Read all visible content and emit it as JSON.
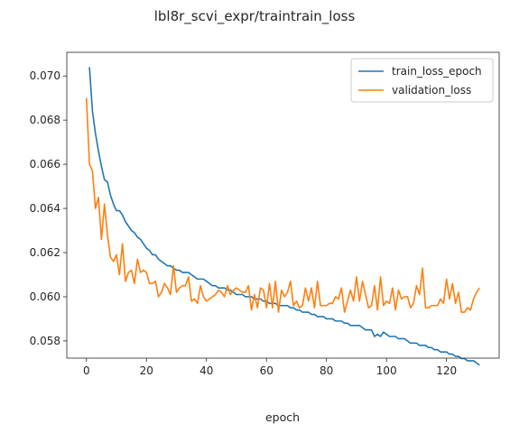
{
  "chart_data": {
    "type": "line",
    "title": "lbl8r_scvi_expr/traintrain_loss",
    "xlabel": "epoch",
    "ylabel": "",
    "xlim": [
      -6.55,
      137.55
    ],
    "ylim": [
      0.05722,
      0.07107
    ],
    "xticks": [
      0,
      20,
      40,
      60,
      80,
      100,
      120
    ],
    "yticks": [
      0.058,
      0.06,
      0.062,
      0.064,
      0.066,
      0.068,
      0.07
    ],
    "ytick_labels": [
      "0.058",
      "0.060",
      "0.062",
      "0.064",
      "0.066",
      "0.068",
      "0.070"
    ],
    "grid": false,
    "legend": "top-right",
    "series": [
      {
        "name": "train_loss_epoch",
        "color": "#1f77b4",
        "x": [
          1,
          2,
          3,
          4,
          5,
          6,
          7,
          8,
          9,
          10,
          11,
          12,
          13,
          14,
          15,
          16,
          17,
          18,
          19,
          20,
          21,
          22,
          23,
          24,
          25,
          26,
          27,
          28,
          29,
          30,
          31,
          32,
          33,
          34,
          35,
          36,
          37,
          38,
          39,
          40,
          41,
          42,
          43,
          44,
          45,
          46,
          47,
          48,
          49,
          50,
          51,
          52,
          53,
          54,
          55,
          56,
          57,
          58,
          59,
          60,
          61,
          62,
          63,
          64,
          65,
          66,
          67,
          68,
          69,
          70,
          71,
          72,
          73,
          74,
          75,
          76,
          77,
          78,
          79,
          80,
          81,
          82,
          83,
          84,
          85,
          86,
          87,
          88,
          89,
          90,
          91,
          92,
          93,
          94,
          95,
          96,
          97,
          98,
          99,
          100,
          101,
          102,
          103,
          104,
          105,
          106,
          107,
          108,
          109,
          110,
          111,
          112,
          113,
          114,
          115,
          116,
          117,
          118,
          119,
          120,
          121,
          122,
          123,
          124,
          125,
          126,
          127,
          128,
          129,
          130,
          131
        ],
        "values": [
          0.0704,
          0.0684,
          0.0674,
          0.0666,
          0.0659,
          0.0653,
          0.0652,
          0.0646,
          0.0642,
          0.0639,
          0.0639,
          0.0637,
          0.0634,
          0.0632,
          0.063,
          0.0629,
          0.0627,
          0.0626,
          0.0624,
          0.0622,
          0.0621,
          0.0619,
          0.0619,
          0.0617,
          0.0616,
          0.0615,
          0.0614,
          0.0614,
          0.0613,
          0.0612,
          0.0612,
          0.0611,
          0.0611,
          0.0611,
          0.061,
          0.0609,
          0.0608,
          0.0608,
          0.0608,
          0.0607,
          0.0606,
          0.0605,
          0.0605,
          0.0604,
          0.0604,
          0.0604,
          0.0603,
          0.0603,
          0.0602,
          0.0601,
          0.0601,
          0.0601,
          0.06,
          0.06,
          0.06,
          0.0599,
          0.0599,
          0.0599,
          0.0598,
          0.0598,
          0.0597,
          0.0597,
          0.0597,
          0.0596,
          0.0596,
          0.0596,
          0.0596,
          0.0595,
          0.0595,
          0.0594,
          0.0594,
          0.0593,
          0.0593,
          0.0593,
          0.0592,
          0.0592,
          0.0591,
          0.0591,
          0.0591,
          0.059,
          0.059,
          0.059,
          0.0589,
          0.0589,
          0.0589,
          0.0588,
          0.0588,
          0.0587,
          0.0587,
          0.0587,
          0.0587,
          0.0586,
          0.0585,
          0.0585,
          0.0585,
          0.0582,
          0.0583,
          0.0582,
          0.0584,
          0.0583,
          0.0582,
          0.0582,
          0.0582,
          0.0581,
          0.0581,
          0.0581,
          0.058,
          0.0579,
          0.0579,
          0.0579,
          0.0578,
          0.0578,
          0.0578,
          0.0577,
          0.0577,
          0.0576,
          0.0576,
          0.0575,
          0.0575,
          0.0575,
          0.0574,
          0.0574,
          0.0573,
          0.0573,
          0.0572,
          0.0572,
          0.0571,
          0.0571,
          0.0571,
          0.057,
          0.0569
        ]
      },
      {
        "name": "validation_loss",
        "color": "#ff7f0e",
        "x": [
          0,
          1,
          2,
          3,
          4,
          5,
          6,
          7,
          8,
          9,
          10,
          11,
          12,
          13,
          14,
          15,
          16,
          17,
          18,
          19,
          20,
          21,
          22,
          23,
          24,
          25,
          26,
          27,
          28,
          29,
          30,
          31,
          32,
          33,
          34,
          35,
          36,
          37,
          38,
          39,
          40,
          41,
          42,
          43,
          44,
          45,
          46,
          47,
          48,
          49,
          50,
          51,
          52,
          53,
          54,
          55,
          56,
          57,
          58,
          59,
          60,
          61,
          62,
          63,
          64,
          65,
          66,
          67,
          68,
          69,
          70,
          71,
          72,
          73,
          74,
          75,
          76,
          77,
          78,
          79,
          80,
          81,
          82,
          83,
          84,
          85,
          86,
          87,
          88,
          89,
          90,
          91,
          92,
          93,
          94,
          95,
          96,
          97,
          98,
          99,
          100,
          101,
          102,
          103,
          104,
          105,
          106,
          107,
          108,
          109,
          110,
          111,
          112,
          113,
          114,
          115,
          116,
          117,
          118,
          119,
          120,
          121,
          122,
          123,
          124,
          125,
          126,
          127,
          128,
          129,
          130,
          131
        ],
        "values": [
          0.069,
          0.066,
          0.0657,
          0.064,
          0.0645,
          0.0626,
          0.0642,
          0.0628,
          0.0618,
          0.0616,
          0.0619,
          0.061,
          0.0624,
          0.0607,
          0.0611,
          0.0612,
          0.0606,
          0.0617,
          0.0611,
          0.0612,
          0.0611,
          0.0606,
          0.0606,
          0.0607,
          0.06,
          0.0602,
          0.0606,
          0.0604,
          0.0601,
          0.0614,
          0.0602,
          0.0604,
          0.0605,
          0.0605,
          0.0609,
          0.0598,
          0.0599,
          0.0597,
          0.0605,
          0.06,
          0.0598,
          0.0599,
          0.06,
          0.0601,
          0.0603,
          0.0602,
          0.06,
          0.0605,
          0.0601,
          0.0603,
          0.0604,
          0.0603,
          0.0602,
          0.0602,
          0.0605,
          0.0594,
          0.0601,
          0.0595,
          0.0604,
          0.0603,
          0.0595,
          0.0606,
          0.0595,
          0.0607,
          0.0593,
          0.0603,
          0.06,
          0.0602,
          0.0607,
          0.0596,
          0.0598,
          0.0595,
          0.0596,
          0.0604,
          0.0598,
          0.0604,
          0.0595,
          0.0607,
          0.0596,
          0.0596,
          0.0596,
          0.0597,
          0.0597,
          0.06,
          0.0599,
          0.0604,
          0.0593,
          0.0598,
          0.0603,
          0.0598,
          0.0609,
          0.0598,
          0.0607,
          0.0601,
          0.0595,
          0.0596,
          0.0605,
          0.0594,
          0.0609,
          0.0596,
          0.0598,
          0.0597,
          0.0604,
          0.0594,
          0.0603,
          0.0599,
          0.06,
          0.06,
          0.0595,
          0.0597,
          0.0605,
          0.0601,
          0.0613,
          0.0595,
          0.0595,
          0.0596,
          0.0596,
          0.0596,
          0.0599,
          0.0597,
          0.0608,
          0.0599,
          0.0606,
          0.0597,
          0.0602,
          0.0593,
          0.0593,
          0.0595,
          0.0594,
          0.0599,
          0.0602,
          0.0604
        ]
      }
    ]
  }
}
